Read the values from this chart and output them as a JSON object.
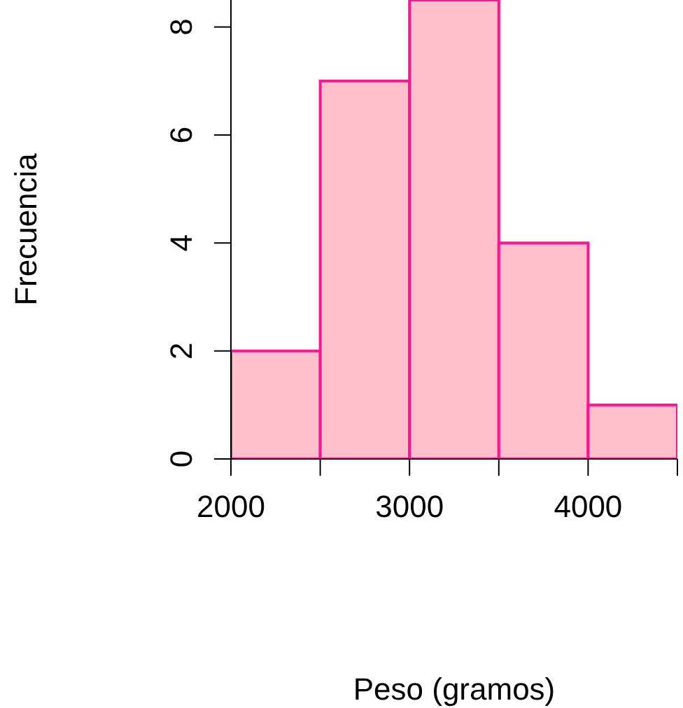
{
  "chart_data": {
    "type": "histogram",
    "xlabel": "Peso (gramos)",
    "ylabel": "Frecuencia",
    "bins": [
      2000,
      2500,
      3000,
      3500,
      4000,
      4500
    ],
    "values": [
      2,
      7,
      8.5,
      4,
      1
    ],
    "color": "#ffc0cb",
    "xlim": [
      2000,
      4500
    ],
    "xticks": [
      2000,
      {
        "value": 2500,
        "label": null
      },
      3000,
      {
        "value": 3500,
        "label": null
      },
      4000,
      {
        "value": 4500,
        "label": null
      }
    ],
    "ylim": [
      0,
      8.5
    ],
    "yticks": [
      0,
      2,
      4,
      6,
      8
    ],
    "grid": false,
    "legend": false
  }
}
